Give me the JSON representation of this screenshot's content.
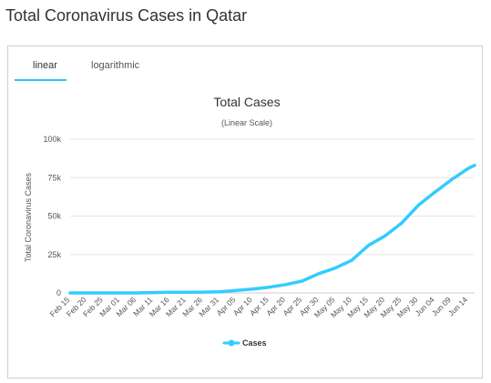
{
  "page": {
    "title": "Total Coronavirus Cases in Qatar"
  },
  "tabs": [
    {
      "label": "linear",
      "active": true
    },
    {
      "label": "logarithmic",
      "active": false
    }
  ],
  "colors": {
    "line": "#33ccff",
    "tab_accent": "#2bc4f0",
    "grid": "#e6e6e6",
    "text": "#333333"
  },
  "chart_data": {
    "type": "line",
    "title": "Total Cases",
    "subtitle": "(Linear Scale)",
    "ylabel": "Total Coronavirus Cases",
    "xlabel": "",
    "ylim": [
      0,
      100000
    ],
    "y_ticks": [
      0,
      25000,
      50000,
      75000,
      100000
    ],
    "y_tick_labels": [
      "0",
      "25k",
      "50k",
      "75k",
      "100k"
    ],
    "grid": true,
    "legend": {
      "position": "bottom-center",
      "entries": [
        "Cases"
      ]
    },
    "x_tick_labels": [
      "Feb 15",
      "Feb 20",
      "Feb 25",
      "Mar 01",
      "Mar 06",
      "Mar 11",
      "Mar 16",
      "Mar 21",
      "Mar 26",
      "Mar 31",
      "Apr 05",
      "Apr 10",
      "Apr 15",
      "Apr 20",
      "Apr 25",
      "Apr 30",
      "May 05",
      "May 10",
      "May 15",
      "May 20",
      "May 25",
      "May 30",
      "Jun 04",
      "Jun 09",
      "Jun 14"
    ],
    "series": [
      {
        "name": "Cases",
        "x": [
          "Feb 15",
          "Feb 20",
          "Feb 25",
          "Mar 01",
          "Mar 06",
          "Mar 11",
          "Mar 16",
          "Mar 21",
          "Mar 26",
          "Mar 31",
          "Apr 05",
          "Apr 10",
          "Apr 15",
          "Apr 20",
          "Apr 25",
          "Apr 30",
          "May 05",
          "May 10",
          "May 15",
          "May 20",
          "May 25",
          "May 30",
          "Jun 04",
          "Jun 09",
          "Jun 14",
          "Jun 16"
        ],
        "values": [
          0,
          0,
          0,
          0,
          10,
          262,
          439,
          481,
          562,
          781,
          1604,
          2512,
          3711,
          5448,
          7764,
          12564,
          16191,
          21331,
          30972,
          37097,
          45465,
          56910,
          65495,
          73595,
          80876,
          83000
        ]
      }
    ]
  }
}
